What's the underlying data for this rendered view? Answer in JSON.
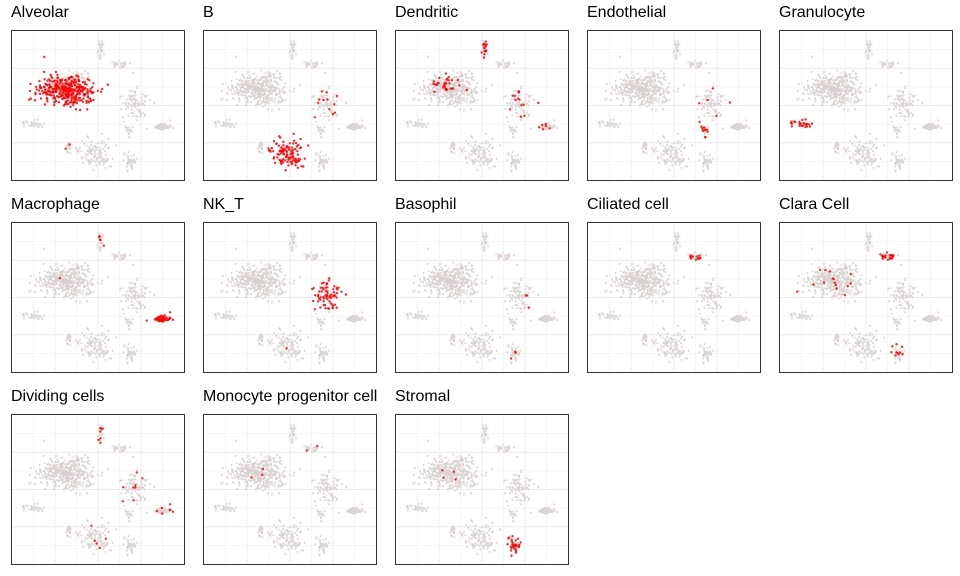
{
  "chart_data": {
    "type": "scatter",
    "subtype": "tSNE small multiples",
    "grid": true,
    "colors": {
      "background_cells": "#d8cfcf",
      "highlight_cells": "#ff0000",
      "gridline": "#ececec",
      "frame": "#333333"
    },
    "xlim": [
      0,
      100
    ],
    "ylim": [
      0,
      100
    ],
    "clusters": [
      {
        "id": "alveolar_blob",
        "cx": 32,
        "cy": 40,
        "rx": 19,
        "ry": 12,
        "n": 340
      },
      {
        "id": "b_blob",
        "cx": 48,
        "cy": 82,
        "rx": 10,
        "ry": 10,
        "n": 110
      },
      {
        "id": "top_a",
        "cx": 52,
        "cy": 12,
        "rx": 3,
        "ry": 7,
        "n": 28
      },
      {
        "id": "top_b",
        "cx": 63,
        "cy": 22,
        "rx": 7,
        "ry": 3,
        "n": 26
      },
      {
        "id": "left_upper",
        "cx": 29,
        "cy": 36,
        "rx": 9,
        "ry": 6,
        "n": 45
      },
      {
        "id": "left_mid",
        "cx": 39,
        "cy": 30,
        "rx": 6,
        "ry": 4,
        "n": 22
      },
      {
        "id": "right_upper",
        "cx": 72,
        "cy": 49,
        "rx": 8,
        "ry": 12,
        "n": 80
      },
      {
        "id": "far_left",
        "cx": 12,
        "cy": 62,
        "rx": 6,
        "ry": 3,
        "n": 26
      },
      {
        "id": "far_right",
        "cx": 87,
        "cy": 64,
        "rx": 8,
        "ry": 3,
        "n": 45
      },
      {
        "id": "bottom_left",
        "cx": 33,
        "cy": 78,
        "rx": 3,
        "ry": 4,
        "n": 18
      },
      {
        "id": "bottom_right",
        "cx": 69,
        "cy": 88,
        "rx": 4,
        "ry": 6,
        "n": 38
      },
      {
        "id": "mid_right",
        "cx": 67,
        "cy": 66,
        "rx": 3,
        "ry": 5,
        "n": 16
      }
    ],
    "panels": [
      {
        "title": "Alveolar",
        "highlight": [
          {
            "cluster": "alveolar_blob",
            "frac": 1.0
          },
          {
            "cluster": "left_upper",
            "frac": 0.1
          },
          {
            "cluster": "bottom_left",
            "frac": 0.2
          }
        ]
      },
      {
        "title": "B",
        "highlight": [
          {
            "cluster": "b_blob",
            "frac": 1.0
          },
          {
            "cluster": "right_upper",
            "frac": 0.15
          }
        ]
      },
      {
        "title": "Dendritic",
        "highlight": [
          {
            "cluster": "left_upper",
            "frac": 0.75
          },
          {
            "cluster": "top_a",
            "frac": 0.7
          },
          {
            "cluster": "right_upper",
            "frac": 0.1
          },
          {
            "cluster": "far_right",
            "frac": 0.2
          }
        ]
      },
      {
        "title": "Endothelial",
        "highlight": [
          {
            "cluster": "mid_right",
            "frac": 0.9
          },
          {
            "cluster": "right_upper",
            "frac": 0.05
          }
        ]
      },
      {
        "title": "Granulocyte",
        "highlight": [
          {
            "cluster": "far_left",
            "frac": 0.9
          }
        ]
      },
      {
        "title": "Macrophage",
        "highlight": [
          {
            "cluster": "far_right",
            "frac": 1.0
          },
          {
            "cluster": "top_a",
            "frac": 0.15
          },
          {
            "cluster": "left_upper",
            "frac": 0.05
          }
        ]
      },
      {
        "title": "NK_T",
        "highlight": [
          {
            "cluster": "right_upper",
            "frac": 0.9
          },
          {
            "cluster": "b_blob",
            "frac": 0.02
          }
        ]
      },
      {
        "title": "Basophil",
        "highlight": [
          {
            "cluster": "bottom_right",
            "frac": 0.1
          },
          {
            "cluster": "right_upper",
            "frac": 0.03
          }
        ]
      },
      {
        "title": "Ciliated cell",
        "highlight": [
          {
            "cluster": "top_b",
            "frac": 0.5
          }
        ]
      },
      {
        "title": "Clara Cell",
        "highlight": [
          {
            "cluster": "top_b",
            "frac": 0.8
          },
          {
            "cluster": "bottom_right",
            "frac": 0.3
          },
          {
            "cluster": "alveolar_blob",
            "frac": 0.03
          }
        ]
      },
      {
        "title": "Dividing cells",
        "highlight": [
          {
            "cluster": "top_a",
            "frac": 0.2
          },
          {
            "cluster": "far_right",
            "frac": 0.15
          },
          {
            "cluster": "right_upper",
            "frac": 0.06
          },
          {
            "cluster": "b_blob",
            "frac": 0.04
          }
        ]
      },
      {
        "title": "Monocyte progenitor cell",
        "highlight": [
          {
            "cluster": "top_b",
            "frac": 0.05
          },
          {
            "cluster": "alveolar_blob",
            "frac": 0.01
          }
        ]
      },
      {
        "title": "Stromal",
        "highlight": [
          {
            "cluster": "bottom_right",
            "frac": 0.9
          },
          {
            "cluster": "alveolar_blob",
            "frac": 0.01
          }
        ]
      }
    ]
  }
}
